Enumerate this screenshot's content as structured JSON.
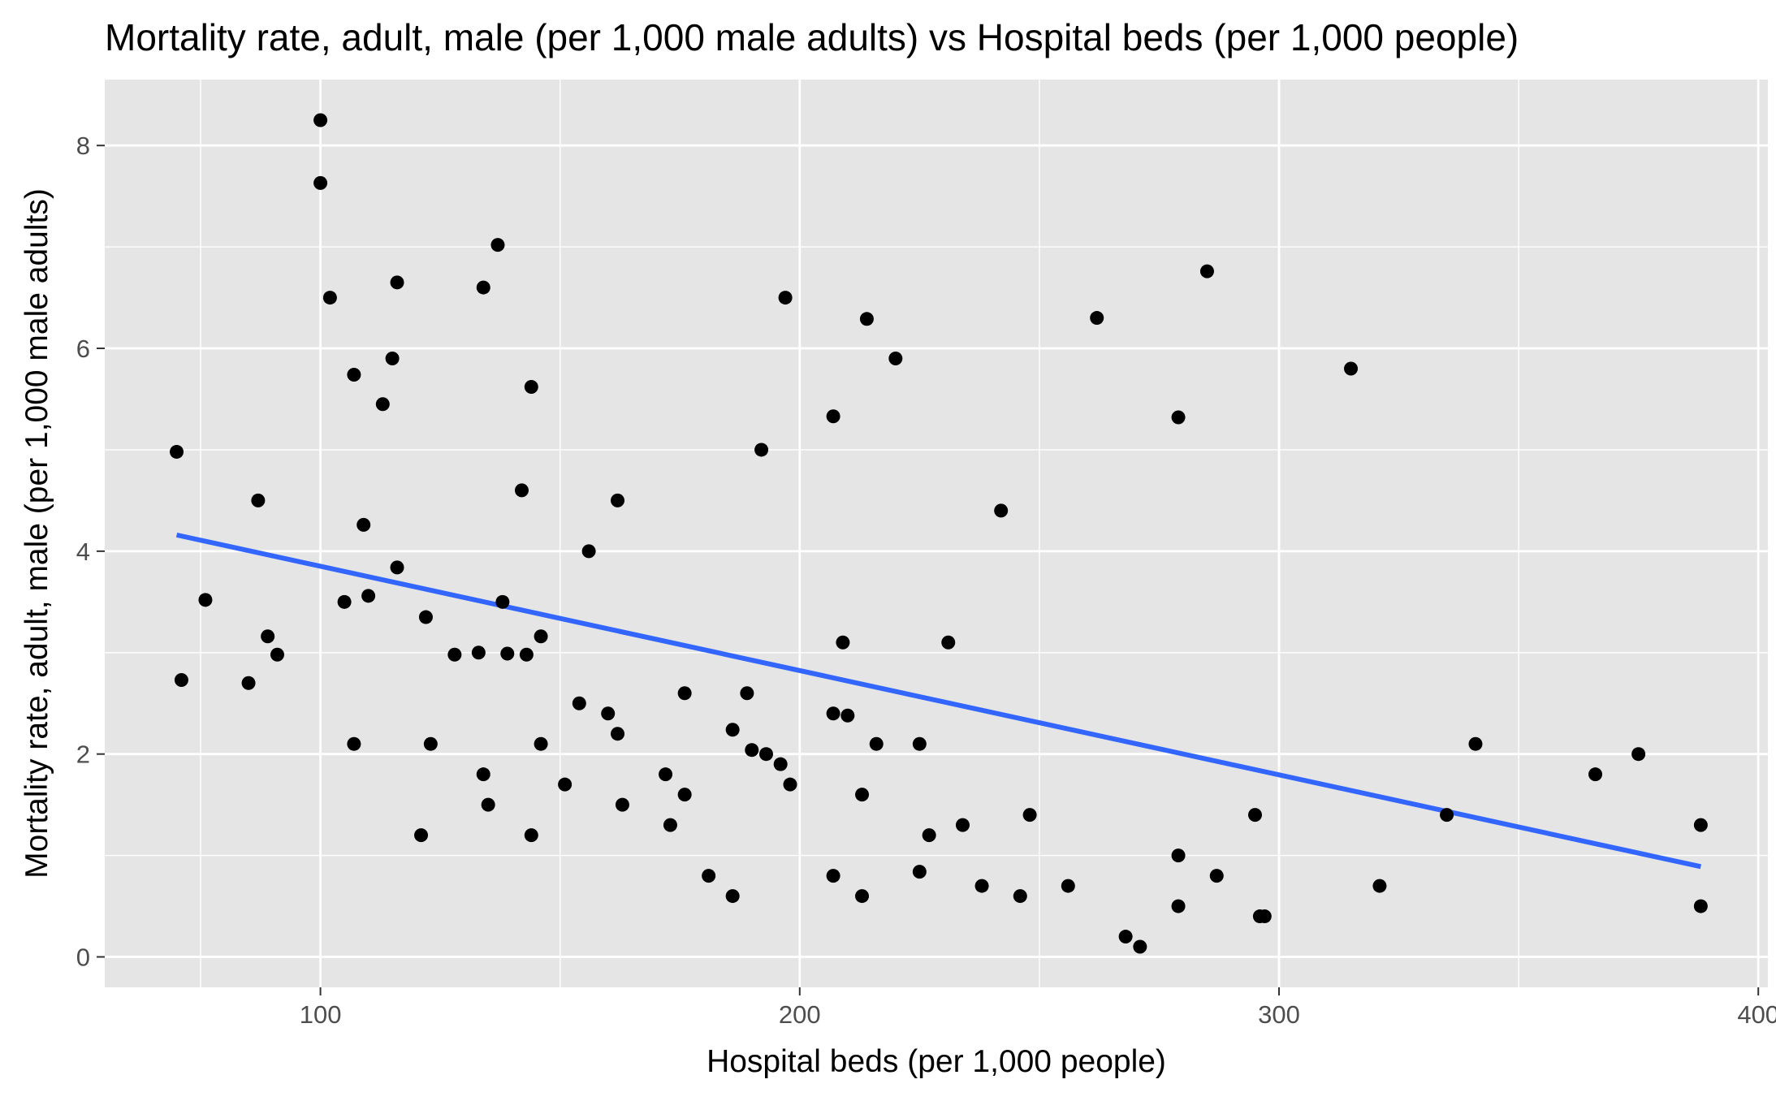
{
  "chart_data": {
    "type": "scatter",
    "title": "Mortality rate, adult, male (per 1,000 male adults) vs Hospital beds (per 1,000 people)",
    "xlabel": "Hospital beds (per 1,000 people)",
    "ylabel": "Mortality rate, adult, male (per 1,000 male adults)",
    "xlim": [
      55,
      402
    ],
    "ylim": [
      -0.3,
      8.65
    ],
    "x_ticks": [
      100,
      200,
      300,
      400
    ],
    "y_ticks": [
      0,
      2,
      4,
      6,
      8
    ],
    "x_minor": [
      75,
      150,
      250,
      350
    ],
    "y_minor": [
      1,
      3,
      5,
      7
    ],
    "grid": true,
    "colors": {
      "panel": "#e5e5e5",
      "grid": "#ffffff",
      "points": "#000000",
      "trend": "#3366ff",
      "tick_label": "#4d4d4d",
      "tick_mark": "#333333"
    },
    "points": [
      {
        "x": 70,
        "y": 4.98
      },
      {
        "x": 71,
        "y": 2.73
      },
      {
        "x": 76,
        "y": 3.52
      },
      {
        "x": 85,
        "y": 2.7
      },
      {
        "x": 87,
        "y": 4.5
      },
      {
        "x": 89,
        "y": 3.16
      },
      {
        "x": 91,
        "y": 2.98
      },
      {
        "x": 100,
        "y": 8.25
      },
      {
        "x": 100,
        "y": 7.63
      },
      {
        "x": 102,
        "y": 6.5
      },
      {
        "x": 105,
        "y": 3.5
      },
      {
        "x": 107,
        "y": 5.74
      },
      {
        "x": 107,
        "y": 2.1
      },
      {
        "x": 109,
        "y": 4.26
      },
      {
        "x": 110,
        "y": 3.56
      },
      {
        "x": 113,
        "y": 5.45
      },
      {
        "x": 115,
        "y": 5.9
      },
      {
        "x": 116,
        "y": 6.65
      },
      {
        "x": 116,
        "y": 3.84
      },
      {
        "x": 121,
        "y": 1.2
      },
      {
        "x": 122,
        "y": 3.35
      },
      {
        "x": 123,
        "y": 2.1
      },
      {
        "x": 128,
        "y": 2.98
      },
      {
        "x": 133,
        "y": 3.0
      },
      {
        "x": 134,
        "y": 6.6
      },
      {
        "x": 134,
        "y": 1.8
      },
      {
        "x": 135,
        "y": 1.5
      },
      {
        "x": 137,
        "y": 7.02
      },
      {
        "x": 138,
        "y": 3.5
      },
      {
        "x": 139,
        "y": 2.99
      },
      {
        "x": 142,
        "y": 4.6
      },
      {
        "x": 143,
        "y": 2.98
      },
      {
        "x": 144,
        "y": 5.62
      },
      {
        "x": 144,
        "y": 1.2
      },
      {
        "x": 146,
        "y": 3.16
      },
      {
        "x": 146,
        "y": 2.1
      },
      {
        "x": 151,
        "y": 1.7
      },
      {
        "x": 154,
        "y": 2.5
      },
      {
        "x": 156,
        "y": 4.0
      },
      {
        "x": 160,
        "y": 2.4
      },
      {
        "x": 162,
        "y": 4.5
      },
      {
        "x": 162,
        "y": 2.2
      },
      {
        "x": 163,
        "y": 1.5
      },
      {
        "x": 172,
        "y": 1.8
      },
      {
        "x": 173,
        "y": 1.3
      },
      {
        "x": 176,
        "y": 2.6
      },
      {
        "x": 176,
        "y": 1.6
      },
      {
        "x": 181,
        "y": 0.8
      },
      {
        "x": 186,
        "y": 2.24
      },
      {
        "x": 186,
        "y": 0.6
      },
      {
        "x": 189,
        "y": 2.6
      },
      {
        "x": 190,
        "y": 2.04
      },
      {
        "x": 192,
        "y": 5.0
      },
      {
        "x": 193,
        "y": 2.0
      },
      {
        "x": 196,
        "y": 1.9
      },
      {
        "x": 197,
        "y": 6.5
      },
      {
        "x": 198,
        "y": 1.7
      },
      {
        "x": 207,
        "y": 5.33
      },
      {
        "x": 207,
        "y": 2.4
      },
      {
        "x": 207,
        "y": 0.8
      },
      {
        "x": 209,
        "y": 3.1
      },
      {
        "x": 210,
        "y": 2.38
      },
      {
        "x": 213,
        "y": 1.6
      },
      {
        "x": 213,
        "y": 0.6
      },
      {
        "x": 214,
        "y": 6.29
      },
      {
        "x": 216,
        "y": 2.1
      },
      {
        "x": 220,
        "y": 5.9
      },
      {
        "x": 225,
        "y": 2.1
      },
      {
        "x": 225,
        "y": 0.84
      },
      {
        "x": 227,
        "y": 1.2
      },
      {
        "x": 231,
        "y": 3.1
      },
      {
        "x": 234,
        "y": 1.3
      },
      {
        "x": 238,
        "y": 0.7
      },
      {
        "x": 242,
        "y": 4.4
      },
      {
        "x": 246,
        "y": 0.6
      },
      {
        "x": 248,
        "y": 1.4
      },
      {
        "x": 256,
        "y": 0.7
      },
      {
        "x": 262,
        "y": 6.3
      },
      {
        "x": 268,
        "y": 0.2
      },
      {
        "x": 271,
        "y": 0.1
      },
      {
        "x": 279,
        "y": 5.32
      },
      {
        "x": 279,
        "y": 1.0
      },
      {
        "x": 279,
        "y": 0.5
      },
      {
        "x": 285,
        "y": 6.76
      },
      {
        "x": 287,
        "y": 0.8
      },
      {
        "x": 295,
        "y": 1.4
      },
      {
        "x": 296,
        "y": 0.4
      },
      {
        "x": 297,
        "y": 0.4
      },
      {
        "x": 315,
        "y": 5.8
      },
      {
        "x": 321,
        "y": 0.7
      },
      {
        "x": 335,
        "y": 1.4
      },
      {
        "x": 341,
        "y": 2.1
      },
      {
        "x": 366,
        "y": 1.8
      },
      {
        "x": 375,
        "y": 2.0
      },
      {
        "x": 388,
        "y": 1.3
      },
      {
        "x": 388,
        "y": 0.5
      }
    ],
    "trend_line": {
      "x": [
        70,
        388
      ],
      "y": [
        4.16,
        0.89
      ]
    }
  }
}
